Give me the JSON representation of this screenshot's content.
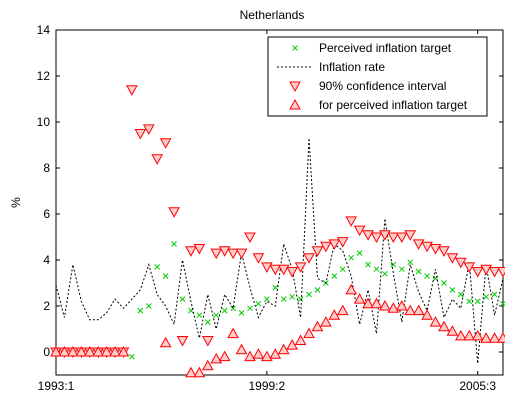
{
  "chart_data": {
    "type": "scatter",
    "title": "Netherlands",
    "xlabel": "",
    "ylabel": "%",
    "x_tick_labels": [
      "1993:1",
      "1999:2",
      "2005:3"
    ],
    "x_tick_index": [
      1,
      26,
      51
    ],
    "xlim": [
      1,
      54
    ],
    "ylim": [
      -1,
      14
    ],
    "y_ticks": [
      0,
      2,
      4,
      6,
      8,
      10,
      12,
      14
    ],
    "legend_position": "top-right",
    "colors": {
      "target": "#00cc00",
      "inflation": "#000000",
      "interval": "#ff0000",
      "interval_fill": "#ffcccc"
    },
    "series": [
      {
        "name": "Perceived inflation target",
        "marker": "x",
        "x": [
          1,
          2,
          3,
          4,
          5,
          6,
          7,
          8,
          9,
          10,
          11,
          12,
          13,
          14,
          15,
          16,
          17,
          18,
          19,
          20,
          21,
          22,
          23,
          24,
          25,
          26,
          27,
          28,
          29,
          30,
          31,
          32,
          33,
          34,
          35,
          36,
          37,
          38,
          39,
          40,
          41,
          42,
          43,
          44,
          45,
          46,
          47,
          48,
          49,
          50,
          51,
          52,
          53,
          54
        ],
        "values": [
          0,
          0,
          0,
          0,
          0,
          0,
          0,
          0,
          0,
          -0.2,
          1.8,
          2.0,
          3.7,
          3.3,
          4.7,
          2.3,
          1.8,
          1.6,
          1.3,
          1.6,
          1.8,
          1.9,
          1.7,
          1.9,
          2.1,
          2.3,
          2.8,
          2.3,
          2.4,
          2.3,
          2.5,
          2.7,
          3.0,
          3.3,
          3.6,
          4.1,
          4.3,
          3.8,
          3.6,
          3.4,
          3.8,
          3.6,
          3.9,
          3.5,
          3.3,
          3.2,
          3.0,
          2.7,
          2.5,
          2.2,
          2.2,
          2.4,
          2.5,
          2.1
        ]
      },
      {
        "name": "Inflation rate",
        "marker": "dashed-line",
        "x": [
          1,
          2,
          3,
          4,
          5,
          6,
          7,
          8,
          9,
          10,
          11,
          12,
          13,
          14,
          15,
          16,
          17,
          18,
          19,
          20,
          21,
          22,
          23,
          24,
          25,
          26,
          27,
          28,
          29,
          30,
          31,
          32,
          33,
          34,
          35,
          36,
          37,
          38,
          39,
          40,
          41,
          42,
          43,
          44,
          45,
          46,
          47,
          48,
          49,
          50,
          51,
          52,
          53,
          54
        ],
        "values": [
          2.9,
          1.5,
          3.8,
          2.2,
          1.4,
          1.4,
          1.7,
          2.3,
          1.9,
          2.3,
          2.7,
          3.8,
          2.5,
          2.0,
          1.2,
          4.0,
          2.2,
          0.6,
          2.5,
          1.0,
          2.5,
          1.9,
          4.3,
          2.8,
          1.5,
          2.2,
          2.0,
          4.7,
          3.6,
          1.5,
          9.3,
          3.2,
          3.0,
          4.7,
          4.4,
          3.3,
          1.2,
          2.7,
          0.8,
          5.8,
          3.4,
          1.3,
          3.8,
          2.6,
          1.8,
          3.6,
          1.5,
          2.3,
          1.9,
          3.9,
          -0.5,
          3.8,
          1.6,
          3.2
        ]
      },
      {
        "name": "90% confidence interval",
        "marker": "triangle-down",
        "x": [
          1,
          2,
          3,
          4,
          5,
          6,
          7,
          8,
          9,
          10,
          11,
          12,
          13,
          14,
          15,
          16,
          17,
          18,
          19,
          20,
          21,
          22,
          23,
          24,
          25,
          26,
          27,
          28,
          29,
          30,
          31,
          32,
          33,
          34,
          35,
          36,
          37,
          38,
          39,
          40,
          41,
          42,
          43,
          44,
          45,
          46,
          47,
          48,
          49,
          50,
          51,
          52,
          53,
          54
        ],
        "values": [
          0,
          0,
          0,
          0,
          0,
          0,
          0,
          0,
          0,
          11.4,
          9.5,
          9.7,
          8.4,
          9.1,
          6.1,
          0.5,
          4.4,
          4.5,
          0.5,
          4.3,
          4.4,
          4.3,
          4.3,
          5.0,
          4.1,
          3.7,
          3.6,
          3.6,
          3.5,
          3.7,
          4.1,
          4.4,
          4.6,
          4.7,
          4.8,
          5.7,
          5.3,
          5.1,
          5.0,
          5.1,
          5.0,
          5.0,
          5.1,
          4.7,
          4.6,
          4.5,
          4.4,
          4.1,
          3.9,
          3.7,
          3.5,
          3.6,
          3.5,
          3.5
        ]
      },
      {
        "name": "for perceived inflation target",
        "marker": "triangle-up",
        "x": [
          1,
          2,
          3,
          4,
          5,
          6,
          7,
          8,
          9,
          10,
          11,
          12,
          13,
          14,
          15,
          16,
          17,
          18,
          19,
          20,
          21,
          22,
          23,
          24,
          25,
          26,
          27,
          28,
          29,
          30,
          31,
          32,
          33,
          34,
          35,
          36,
          37,
          38,
          39,
          40,
          41,
          42,
          43,
          44,
          45,
          46,
          47,
          48,
          49,
          50,
          51,
          52,
          53,
          54
        ],
        "values": [
          0,
          0,
          0,
          0,
          0,
          0,
          0,
          0,
          0,
          null,
          null,
          null,
          null,
          0.4,
          null,
          null,
          -0.9,
          -0.9,
          -0.6,
          -0.3,
          -0.2,
          0.8,
          0.1,
          -0.2,
          -0.1,
          -0.2,
          -0.1,
          0.1,
          0.3,
          0.5,
          0.8,
          1.1,
          1.3,
          1.6,
          1.8,
          2.7,
          2.3,
          2.1,
          2.1,
          2.0,
          1.9,
          2.0,
          1.8,
          1.8,
          1.6,
          1.3,
          1.1,
          0.9,
          0.7,
          0.7,
          0.7,
          0.6,
          0.6,
          0.6
        ]
      }
    ]
  }
}
